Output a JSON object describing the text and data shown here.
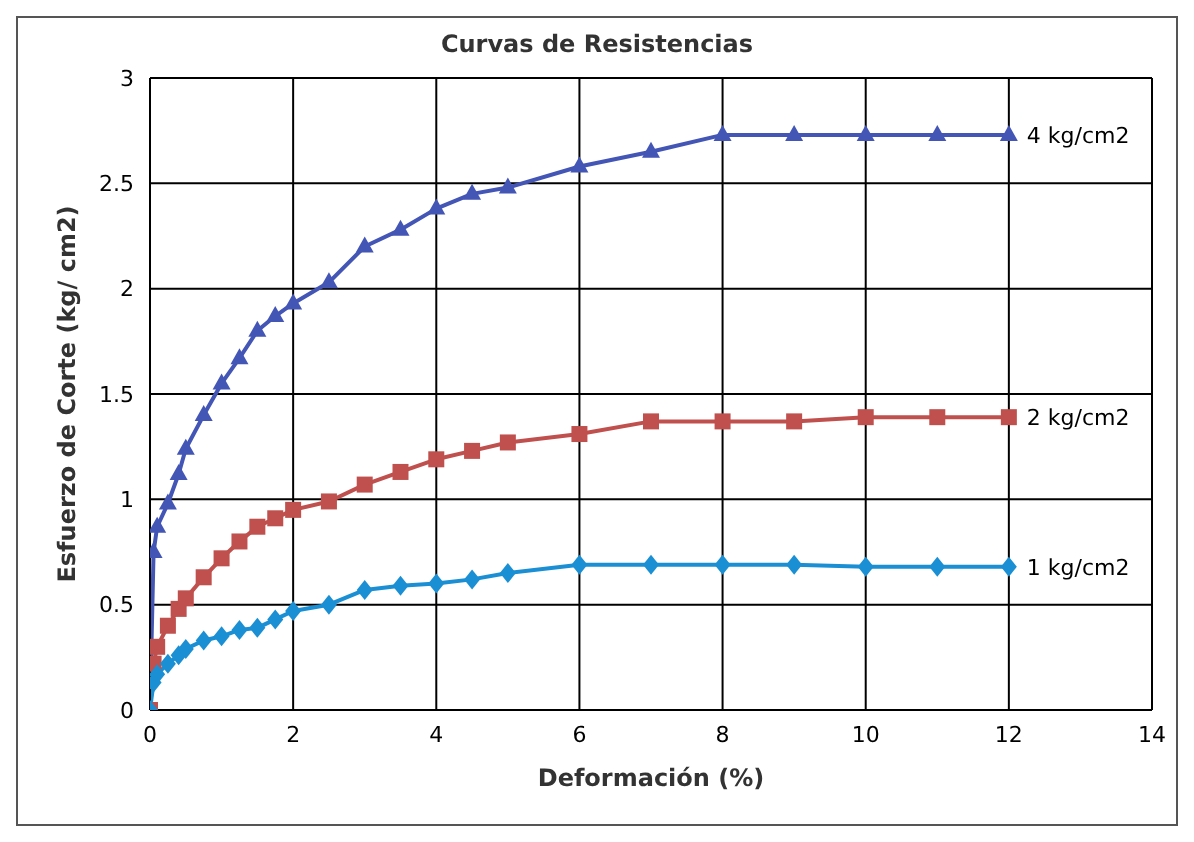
{
  "chart_data": {
    "type": "line",
    "title": "Curvas de Resistencias",
    "xlabel": "Deformación  (%)",
    "ylabel": "Esfuerzo de Corte (kg/ cm2)",
    "x": [
      0,
      0.05,
      0.1,
      0.25,
      0.4,
      0.5,
      0.75,
      1,
      1.25,
      1.5,
      1.75,
      2,
      2.5,
      3,
      3.5,
      4,
      4.5,
      5,
      6,
      7,
      8,
      9,
      10,
      11,
      12
    ],
    "series": [
      {
        "name": "4 kg/cm2",
        "color": "#4355b5",
        "marker": "triangle",
        "values": [
          0,
          0.75,
          0.87,
          0.98,
          1.12,
          1.24,
          1.4,
          1.55,
          1.67,
          1.8,
          1.87,
          1.93,
          2.03,
          2.2,
          2.28,
          2.38,
          2.45,
          2.48,
          2.58,
          2.65,
          2.73,
          2.73,
          2.73,
          2.73,
          2.73
        ]
      },
      {
        "name": "2 kg/cm2",
        "color": "#c0504d",
        "marker": "square",
        "values": [
          0,
          0.22,
          0.3,
          0.4,
          0.48,
          0.53,
          0.63,
          0.72,
          0.8,
          0.87,
          0.91,
          0.95,
          0.99,
          1.07,
          1.13,
          1.19,
          1.23,
          1.27,
          1.31,
          1.37,
          1.37,
          1.37,
          1.39,
          1.39,
          1.39
        ]
      },
      {
        "name": "1 kg/cm2",
        "color": "#1b8fd4",
        "marker": "diamond",
        "values": [
          0,
          0.13,
          0.17,
          0.22,
          0.26,
          0.29,
          0.33,
          0.35,
          0.38,
          0.39,
          0.43,
          0.47,
          0.5,
          0.57,
          0.59,
          0.6,
          0.62,
          0.65,
          0.69,
          0.69,
          0.69,
          0.69,
          0.68,
          0.68,
          0.68
        ]
      }
    ],
    "xlim": [
      0,
      14
    ],
    "xticks": [
      0,
      2,
      4,
      6,
      8,
      10,
      12,
      14
    ],
    "ylim": [
      0,
      3
    ],
    "yticks": [
      0,
      0.5,
      1,
      1.5,
      2,
      2.5,
      3
    ],
    "grid": true
  }
}
